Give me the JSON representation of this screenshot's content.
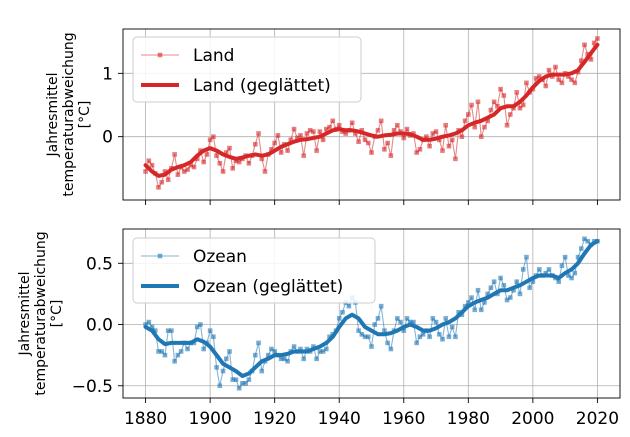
{
  "chart_data": [
    {
      "type": "line",
      "ylabel": [
        "Jahresmittel",
        "temperaturabweichung",
        "[°C]"
      ],
      "xlim": [
        1873,
        2027
      ],
      "ylim": [
        -1.0,
        1.7
      ],
      "yticks": [
        1,
        0
      ],
      "xticks": [
        1880,
        1900,
        1920,
        1940,
        1960,
        1980,
        2000,
        2020
      ],
      "show_xtick_labels": false,
      "grid": true,
      "legend_position": "upper-left",
      "series": [
        {
          "name": "Land",
          "color": "#d62728",
          "style": "raw",
          "x": [
            1880,
            1881,
            1882,
            1883,
            1884,
            1885,
            1886,
            1887,
            1888,
            1889,
            1890,
            1891,
            1892,
            1893,
            1894,
            1895,
            1896,
            1897,
            1898,
            1899,
            1900,
            1901,
            1902,
            1903,
            1904,
            1905,
            1906,
            1907,
            1908,
            1909,
            1910,
            1911,
            1912,
            1913,
            1914,
            1915,
            1916,
            1917,
            1918,
            1919,
            1920,
            1921,
            1922,
            1923,
            1924,
            1925,
            1926,
            1927,
            1928,
            1929,
            1930,
            1931,
            1932,
            1933,
            1934,
            1935,
            1936,
            1937,
            1938,
            1939,
            1940,
            1941,
            1942,
            1943,
            1944,
            1945,
            1946,
            1947,
            1948,
            1949,
            1950,
            1951,
            1952,
            1953,
            1954,
            1955,
            1956,
            1957,
            1958,
            1959,
            1960,
            1961,
            1962,
            1963,
            1964,
            1965,
            1966,
            1967,
            1968,
            1969,
            1970,
            1971,
            1972,
            1973,
            1974,
            1975,
            1976,
            1977,
            1978,
            1979,
            1980,
            1981,
            1982,
            1983,
            1984,
            1985,
            1986,
            1987,
            1988,
            1989,
            1990,
            1991,
            1992,
            1993,
            1994,
            1995,
            1996,
            1997,
            1998,
            1999,
            2000,
            2001,
            2002,
            2003,
            2004,
            2005,
            2006,
            2007,
            2008,
            2009,
            2010,
            2011,
            2012,
            2013,
            2014,
            2015,
            2016,
            2017,
            2018,
            2019,
            2020
          ],
          "y": [
            -0.55,
            -0.38,
            -0.45,
            -0.58,
            -0.8,
            -0.72,
            -0.55,
            -0.68,
            -0.5,
            -0.28,
            -0.6,
            -0.48,
            -0.55,
            -0.52,
            -0.45,
            -0.48,
            -0.35,
            -0.22,
            -0.4,
            -0.28,
            -0.05,
            0.0,
            -0.3,
            -0.42,
            -0.55,
            -0.25,
            -0.18,
            -0.5,
            -0.38,
            -0.4,
            -0.35,
            -0.3,
            -0.42,
            -0.3,
            -0.12,
            0.05,
            -0.35,
            -0.55,
            -0.28,
            -0.2,
            -0.1,
            0.02,
            -0.25,
            -0.12,
            -0.22,
            -0.05,
            0.12,
            -0.02,
            0.02,
            -0.3,
            0.05,
            0.1,
            0.08,
            -0.22,
            0.08,
            -0.05,
            0.12,
            0.15,
            0.25,
            0.12,
            0.18,
            0.08,
            0.05,
            0.1,
            0.22,
            0.05,
            -0.08,
            0.1,
            -0.05,
            -0.1,
            -0.25,
            0.0,
            0.1,
            0.25,
            -0.2,
            -0.1,
            -0.3,
            0.1,
            0.18,
            0.08,
            -0.02,
            0.12,
            0.02,
            0.05,
            -0.25,
            -0.2,
            -0.05,
            0.0,
            -0.15,
            0.05,
            0.08,
            -0.05,
            -0.22,
            0.18,
            -0.15,
            -0.05,
            -0.35,
            0.1,
            0.0,
            0.25,
            0.35,
            0.5,
            0.15,
            0.55,
            0.0,
            0.15,
            0.25,
            0.42,
            0.55,
            0.48,
            0.75,
            0.65,
            0.18,
            0.35,
            0.45,
            0.7,
            0.45,
            0.5,
            0.85,
            0.7,
            0.75,
            0.92,
            0.95,
            0.9,
            0.8,
            1.05,
            0.95,
            1.1,
            0.9,
            0.85,
            1.0,
            0.95,
            0.9,
            0.85,
            1.02,
            1.2,
            1.45,
            1.3,
            1.22,
            1.48,
            1.55
          ]
        },
        {
          "name": "Land (geglättet)",
          "color": "#d62728",
          "style": "smooth",
          "x": [
            1880,
            1882,
            1884,
            1886,
            1888,
            1890,
            1892,
            1894,
            1896,
            1898,
            1900,
            1902,
            1904,
            1906,
            1908,
            1910,
            1912,
            1914,
            1916,
            1918,
            1920,
            1922,
            1924,
            1926,
            1928,
            1930,
            1932,
            1934,
            1936,
            1938,
            1940,
            1942,
            1944,
            1946,
            1948,
            1950,
            1952,
            1954,
            1956,
            1958,
            1960,
            1962,
            1964,
            1966,
            1968,
            1970,
            1972,
            1974,
            1976,
            1978,
            1980,
            1982,
            1984,
            1986,
            1988,
            1990,
            1992,
            1994,
            1996,
            1998,
            2000,
            2002,
            2004,
            2006,
            2008,
            2010,
            2012,
            2014,
            2016,
            2018,
            2020
          ],
          "y": [
            -0.45,
            -0.55,
            -0.62,
            -0.6,
            -0.52,
            -0.48,
            -0.45,
            -0.4,
            -0.3,
            -0.22,
            -0.18,
            -0.22,
            -0.28,
            -0.32,
            -0.35,
            -0.33,
            -0.3,
            -0.28,
            -0.3,
            -0.28,
            -0.22,
            -0.16,
            -0.12,
            -0.08,
            -0.05,
            -0.04,
            -0.02,
            0.0,
            0.05,
            0.1,
            0.12,
            0.1,
            0.1,
            0.08,
            0.05,
            0.02,
            0.0,
            0.02,
            0.03,
            0.05,
            0.05,
            0.04,
            0.0,
            -0.05,
            -0.05,
            -0.03,
            0.0,
            0.02,
            0.05,
            0.1,
            0.18,
            0.22,
            0.25,
            0.3,
            0.35,
            0.45,
            0.48,
            0.48,
            0.55,
            0.65,
            0.78,
            0.88,
            0.95,
            0.98,
            0.98,
            0.98,
            1.0,
            1.05,
            1.18,
            1.32,
            1.45
          ]
        }
      ]
    },
    {
      "type": "line",
      "ylabel": [
        "Jahresmittel",
        "temperaturabweichung",
        "[°C]"
      ],
      "xlim": [
        1873,
        2027
      ],
      "ylim": [
        -0.6,
        0.78
      ],
      "yticks": [
        0.5,
        0.0,
        -0.5
      ],
      "ytick_labels": [
        "0.5",
        "0.0",
        "−0.5"
      ],
      "xticks": [
        1880,
        1900,
        1920,
        1940,
        1960,
        1980,
        2000,
        2020
      ],
      "show_xtick_labels": true,
      "grid": true,
      "legend_position": "upper-left",
      "series": [
        {
          "name": "Ozean",
          "color": "#1f77b4",
          "style": "raw",
          "x": [
            1880,
            1881,
            1882,
            1883,
            1884,
            1885,
            1886,
            1887,
            1888,
            1889,
            1890,
            1891,
            1892,
            1893,
            1894,
            1895,
            1896,
            1897,
            1898,
            1899,
            1900,
            1901,
            1902,
            1903,
            1904,
            1905,
            1906,
            1907,
            1908,
            1909,
            1910,
            1911,
            1912,
            1913,
            1914,
            1915,
            1916,
            1917,
            1918,
            1919,
            1920,
            1921,
            1922,
            1923,
            1924,
            1925,
            1926,
            1927,
            1928,
            1929,
            1930,
            1931,
            1932,
            1933,
            1934,
            1935,
            1936,
            1937,
            1938,
            1939,
            1940,
            1941,
            1942,
            1943,
            1944,
            1945,
            1946,
            1947,
            1948,
            1949,
            1950,
            1951,
            1952,
            1953,
            1954,
            1955,
            1956,
            1957,
            1958,
            1959,
            1960,
            1961,
            1962,
            1963,
            1964,
            1965,
            1966,
            1967,
            1968,
            1969,
            1970,
            1971,
            1972,
            1973,
            1974,
            1975,
            1976,
            1977,
            1978,
            1979,
            1980,
            1981,
            1982,
            1983,
            1984,
            1985,
            1986,
            1987,
            1988,
            1989,
            1990,
            1991,
            1992,
            1993,
            1994,
            1995,
            1996,
            1997,
            1998,
            1999,
            2000,
            2001,
            2002,
            2003,
            2004,
            2005,
            2006,
            2007,
            2008,
            2009,
            2010,
            2011,
            2012,
            2013,
            2014,
            2015,
            2016,
            2017,
            2018,
            2019,
            2020
          ],
          "y": [
            0.0,
            0.02,
            -0.02,
            -0.05,
            -0.22,
            -0.22,
            -0.25,
            -0.05,
            -0.05,
            -0.3,
            -0.25,
            -0.22,
            -0.15,
            -0.2,
            -0.15,
            -0.15,
            -0.02,
            0.0,
            -0.2,
            -0.15,
            -0.05,
            -0.1,
            -0.35,
            -0.5,
            -0.38,
            -0.28,
            -0.22,
            -0.45,
            -0.45,
            -0.52,
            -0.48,
            -0.48,
            -0.45,
            -0.38,
            -0.25,
            -0.15,
            -0.38,
            -0.3,
            -0.25,
            -0.2,
            -0.22,
            -0.25,
            -0.28,
            -0.28,
            -0.3,
            -0.22,
            -0.18,
            -0.22,
            -0.2,
            -0.28,
            -0.2,
            -0.22,
            -0.18,
            -0.28,
            -0.22,
            -0.22,
            -0.2,
            -0.1,
            -0.08,
            -0.05,
            0.05,
            0.1,
            0.18,
            0.15,
            0.22,
            0.18,
            -0.05,
            -0.08,
            -0.1,
            -0.1,
            -0.18,
            0.0,
            0.05,
            0.15,
            -0.05,
            -0.15,
            -0.2,
            -0.05,
            0.05,
            0.02,
            -0.05,
            0.05,
            0.02,
            0.02,
            -0.15,
            -0.1,
            -0.08,
            -0.05,
            -0.1,
            0.05,
            0.02,
            -0.08,
            -0.12,
            0.05,
            -0.1,
            -0.02,
            -0.1,
            0.1,
            0.08,
            0.15,
            0.18,
            0.22,
            0.12,
            0.28,
            0.12,
            0.18,
            0.25,
            0.3,
            0.35,
            0.25,
            0.38,
            0.32,
            0.2,
            0.22,
            0.28,
            0.35,
            0.25,
            0.45,
            0.55,
            0.3,
            0.35,
            0.4,
            0.45,
            0.4,
            0.42,
            0.45,
            0.4,
            0.38,
            0.35,
            0.48,
            0.55,
            0.4,
            0.38,
            0.42,
            0.55,
            0.62,
            0.7,
            0.68,
            0.65,
            0.68,
            0.68
          ]
        },
        {
          "name": "Ozean (geglättet)",
          "color": "#1f77b4",
          "style": "smooth",
          "x": [
            1880,
            1882,
            1884,
            1886,
            1888,
            1890,
            1892,
            1894,
            1896,
            1898,
            1900,
            1902,
            1904,
            1906,
            1908,
            1910,
            1912,
            1914,
            1916,
            1918,
            1920,
            1922,
            1924,
            1926,
            1928,
            1930,
            1932,
            1934,
            1936,
            1938,
            1940,
            1942,
            1944,
            1946,
            1948,
            1950,
            1952,
            1954,
            1956,
            1958,
            1960,
            1962,
            1964,
            1966,
            1968,
            1970,
            1972,
            1974,
            1976,
            1978,
            1980,
            1982,
            1984,
            1986,
            1988,
            1990,
            1992,
            1994,
            1996,
            1998,
            2000,
            2002,
            2004,
            2006,
            2008,
            2010,
            2012,
            2014,
            2016,
            2018,
            2020
          ],
          "y": [
            -0.02,
            -0.05,
            -0.12,
            -0.16,
            -0.15,
            -0.15,
            -0.15,
            -0.15,
            -0.12,
            -0.14,
            -0.18,
            -0.25,
            -0.32,
            -0.35,
            -0.38,
            -0.42,
            -0.4,
            -0.35,
            -0.3,
            -0.28,
            -0.25,
            -0.25,
            -0.24,
            -0.22,
            -0.22,
            -0.22,
            -0.2,
            -0.18,
            -0.15,
            -0.1,
            -0.02,
            0.05,
            0.08,
            0.05,
            -0.02,
            -0.05,
            -0.08,
            -0.08,
            -0.07,
            -0.05,
            -0.02,
            0.0,
            -0.02,
            -0.05,
            -0.05,
            -0.03,
            0.0,
            0.02,
            0.05,
            0.1,
            0.15,
            0.18,
            0.2,
            0.22,
            0.25,
            0.28,
            0.28,
            0.3,
            0.32,
            0.35,
            0.38,
            0.4,
            0.4,
            0.4,
            0.38,
            0.42,
            0.45,
            0.5,
            0.58,
            0.65,
            0.68
          ]
        }
      ]
    }
  ]
}
